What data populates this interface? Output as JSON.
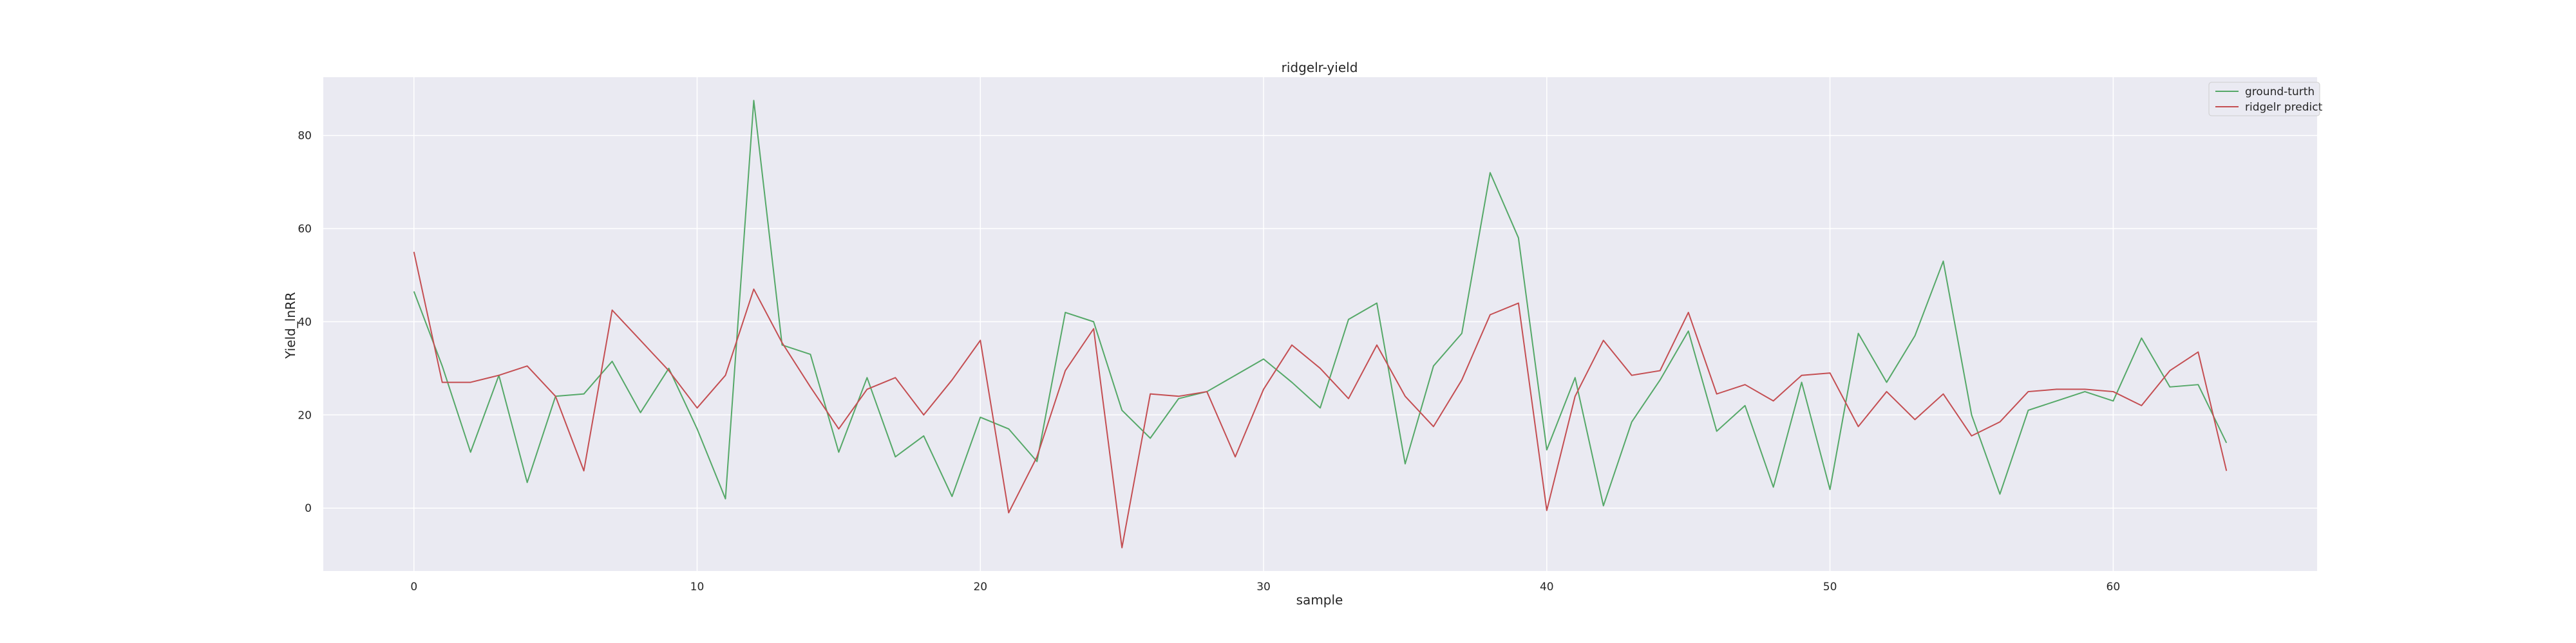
{
  "chart_data": {
    "type": "line",
    "title": "ridgelr-yield",
    "xlabel": "sample",
    "ylabel": "Yield_lnRR",
    "xlim": [
      -3.2,
      67.2
    ],
    "ylim": [
      -13.5,
      92.5
    ],
    "xticks": [
      0,
      10,
      20,
      30,
      40,
      50,
      60
    ],
    "yticks": [
      0,
      20,
      40,
      60,
      80
    ],
    "grid": true,
    "legend_position": "top-right",
    "x": [
      0,
      1,
      2,
      3,
      4,
      5,
      6,
      7,
      8,
      9,
      10,
      11,
      12,
      13,
      14,
      15,
      16,
      17,
      18,
      19,
      20,
      21,
      22,
      23,
      24,
      25,
      26,
      27,
      28,
      29,
      30,
      31,
      32,
      33,
      34,
      35,
      36,
      37,
      38,
      39,
      40,
      41,
      42,
      43,
      44,
      45,
      46,
      47,
      48,
      49,
      50,
      51,
      52,
      53,
      54,
      55,
      56,
      57,
      58,
      59,
      60,
      61,
      62,
      63,
      64
    ],
    "series": [
      {
        "name": "ground-turth",
        "color": "#55a868",
        "values": [
          46.5,
          30.5,
          12,
          28.5,
          5.5,
          24,
          24.5,
          31.5,
          20.5,
          30,
          17,
          2,
          87.5,
          35,
          33,
          12,
          28,
          11,
          15.5,
          2.5,
          19.5,
          17,
          10,
          42,
          40,
          21,
          15,
          23.5,
          25,
          28.5,
          32,
          27,
          21.5,
          40.5,
          44,
          9.5,
          30.5,
          37.5,
          72,
          58,
          12.5,
          28,
          0.5,
          18.5,
          27.5,
          38,
          16.5,
          22,
          4.5,
          27,
          4,
          37.5,
          27,
          37,
          53,
          20,
          3,
          21,
          23,
          25,
          23,
          36.5,
          26,
          26.5,
          14
        ]
      },
      {
        "name": "ridgelr predict",
        "color": "#c44e52",
        "values": [
          55,
          27,
          27,
          28.5,
          30.5,
          24,
          8,
          42.5,
          36,
          29.5,
          21.5,
          28.5,
          47,
          35.5,
          26,
          17,
          25.5,
          28,
          20,
          27.5,
          36,
          -1,
          11,
          29.5,
          38.5,
          -8.5,
          24.5,
          24,
          25,
          11,
          25.5,
          35,
          30,
          23.5,
          35,
          24,
          17.5,
          27.5,
          41.5,
          44,
          -0.5,
          24,
          36,
          28.5,
          29.5,
          42,
          24.5,
          26.5,
          23,
          28.5,
          29,
          17.5,
          25,
          19,
          24.5,
          15.5,
          18.5,
          25,
          25.5,
          25.5,
          25,
          22,
          29.5,
          33.5,
          8
        ]
      }
    ]
  }
}
